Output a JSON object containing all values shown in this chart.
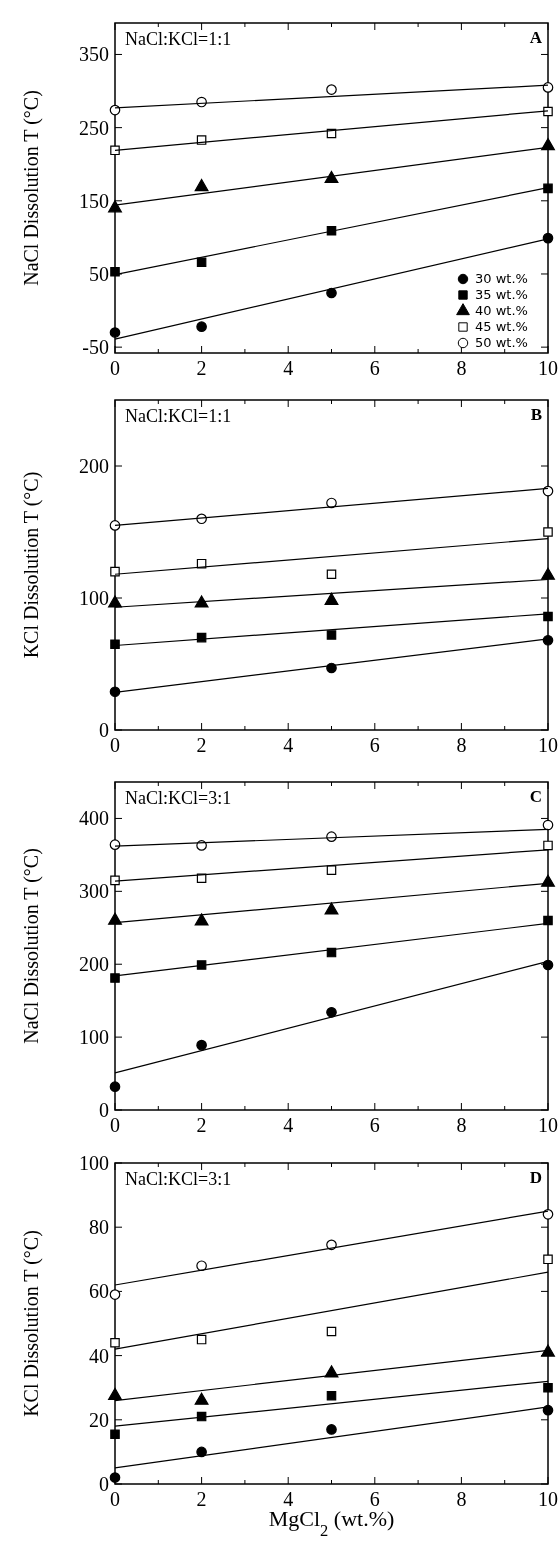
{
  "chart_data": [
    {
      "type": "scatter",
      "annotations": [
        "NaCl:KCl=1:1",
        "A"
      ],
      "ylabel": "NaCl Dissolution T (°C)",
      "xlim": [
        0,
        10
      ],
      "xticks": [
        0,
        {
          "value": 1,
          "label": null
        },
        2,
        {
          "value": 3,
          "label": null
        },
        4,
        {
          "value": 5,
          "label": null
        },
        6,
        {
          "value": 7,
          "label": null
        },
        8,
        {
          "value": 9,
          "label": null
        },
        10
      ],
      "ylim": [
        -58,
        393
      ],
      "yticks": [
        -50,
        50,
        150,
        250,
        350
      ],
      "legend": "bottom right",
      "series": [
        {
          "name": "30 wt.%",
          "marker": "circle",
          "color": "#000000",
          "x": [
            0,
            2,
            5,
            10
          ],
          "values": [
            -30,
            -22,
            24,
            99
          ]
        },
        {
          "name": "35 wt.%",
          "marker": "square",
          "color": "#000000",
          "x": [
            0,
            2,
            5,
            10
          ],
          "values": [
            53,
            66,
            109,
            167
          ]
        },
        {
          "name": "40 wt.%",
          "marker": "triangle",
          "color": "#000000",
          "x": [
            0,
            2,
            5,
            10
          ],
          "values": [
            140,
            169,
            180,
            225
          ]
        },
        {
          "name": "45 wt.%",
          "marker": "square",
          "color": "#ffffff",
          "x": [
            0,
            2,
            5,
            10
          ],
          "values": [
            219,
            233,
            242,
            272
          ]
        },
        {
          "name": "50 wt.%",
          "marker": "circle",
          "color": "#ffffff",
          "x": [
            0,
            2,
            5,
            10
          ],
          "values": [
            274,
            285,
            302,
            305
          ]
        },
        {
          "type": "line",
          "color": "#000000",
          "x": [
            0,
            10
          ],
          "values": [
            -39,
            98
          ]
        },
        {
          "type": "line",
          "color": "#000000",
          "x": [
            0,
            10
          ],
          "values": [
            49,
            168
          ]
        },
        {
          "type": "line",
          "color": "#000000",
          "x": [
            0,
            10
          ],
          "values": [
            144,
            223
          ]
        },
        {
          "type": "line",
          "color": "#000000",
          "x": [
            0,
            10
          ],
          "values": [
            219,
            273
          ]
        },
        {
          "type": "line",
          "color": "#000000",
          "x": [
            0,
            10
          ],
          "values": [
            277,
            308
          ]
        }
      ]
    },
    {
      "type": "scatter",
      "annotations": [
        "NaCl:KCl=1:1",
        "B"
      ],
      "ylabel": "KCl Dissolution T (°C)",
      "xlim": [
        0,
        10
      ],
      "xticks": [
        0,
        {
          "value": 1,
          "label": null
        },
        2,
        {
          "value": 3,
          "label": null
        },
        4,
        {
          "value": 5,
          "label": null
        },
        6,
        {
          "value": 7,
          "label": null
        },
        8,
        {
          "value": 9,
          "label": null
        },
        10
      ],
      "ylim": [
        0,
        250
      ],
      "yticks": [
        0,
        100,
        200
      ],
      "series": [
        {
          "marker": "circle",
          "color": "#000000",
          "x": [
            0,
            5,
            10
          ],
          "values": [
            29,
            47,
            68
          ]
        },
        {
          "marker": "square",
          "color": "#000000",
          "x": [
            0,
            2,
            5,
            10
          ],
          "values": [
            65,
            70,
            72,
            86
          ]
        },
        {
          "marker": "triangle",
          "color": "#000000",
          "x": [
            0,
            2,
            5,
            10
          ],
          "values": [
            96,
            96,
            98,
            117
          ]
        },
        {
          "marker": "square",
          "color": "#ffffff",
          "x": [
            0,
            2,
            5,
            10
          ],
          "values": [
            120,
            126,
            118,
            150
          ]
        },
        {
          "marker": "circle",
          "color": "#ffffff",
          "x": [
            0,
            2,
            5,
            10
          ],
          "values": [
            155,
            160,
            172,
            181
          ]
        },
        {
          "type": "line",
          "color": "#000000",
          "x": [
            0,
            10
          ],
          "values": [
            28.5,
            69
          ]
        },
        {
          "type": "line",
          "color": "#000000",
          "x": [
            0,
            10
          ],
          "values": [
            64,
            88
          ]
        },
        {
          "type": "line",
          "color": "#000000",
          "x": [
            0,
            10
          ],
          "values": [
            93,
            114
          ]
        },
        {
          "type": "line",
          "color": "#000000",
          "x": [
            0,
            10
          ],
          "values": [
            118,
            145
          ]
        },
        {
          "type": "line",
          "color": "#000000",
          "x": [
            0,
            10
          ],
          "values": [
            155,
            183
          ]
        }
      ]
    },
    {
      "type": "scatter",
      "annotations": [
        "NaCl:KCl=3:1",
        "C"
      ],
      "ylabel": "NaCl Dissolution T (°C)",
      "xlim": [
        0,
        10
      ],
      "xticks": [
        0,
        {
          "value": 1,
          "label": null
        },
        2,
        {
          "value": 3,
          "label": null
        },
        4,
        {
          "value": 5,
          "label": null
        },
        6,
        {
          "value": 7,
          "label": null
        },
        8,
        {
          "value": 9,
          "label": null
        },
        10
      ],
      "ylim": [
        0,
        450
      ],
      "yticks": [
        0,
        100,
        200,
        300,
        400
      ],
      "series": [
        {
          "marker": "circle",
          "color": "#000000",
          "x": [
            0,
            2,
            5,
            10
          ],
          "values": [
            32,
            89,
            134,
            199
          ]
        },
        {
          "marker": "square",
          "color": "#000000",
          "x": [
            0,
            2,
            5,
            10
          ],
          "values": [
            181,
            199,
            216,
            260
          ]
        },
        {
          "marker": "triangle",
          "color": "#000000",
          "x": [
            0,
            2,
            5,
            10
          ],
          "values": [
            260,
            259,
            274,
            312
          ]
        },
        {
          "marker": "square",
          "color": "#ffffff",
          "x": [
            0,
            2,
            5,
            10
          ],
          "values": [
            315,
            318,
            329,
            363
          ]
        },
        {
          "marker": "circle",
          "color": "#ffffff",
          "x": [
            0,
            2,
            5,
            10
          ],
          "values": [
            364,
            363,
            375,
            391
          ]
        },
        {
          "type": "line",
          "color": "#000000",
          "x": [
            0,
            10
          ],
          "values": [
            51,
            204
          ]
        },
        {
          "type": "line",
          "color": "#000000",
          "x": [
            0,
            10
          ],
          "values": [
            184,
            256
          ]
        },
        {
          "type": "line",
          "color": "#000000",
          "x": [
            0,
            10
          ],
          "values": [
            257,
            311
          ]
        },
        {
          "type": "line",
          "color": "#000000",
          "x": [
            0,
            10
          ],
          "values": [
            314,
            357
          ]
        },
        {
          "type": "line",
          "color": "#000000",
          "x": [
            0,
            10
          ],
          "values": [
            362,
            385
          ]
        }
      ]
    },
    {
      "type": "scatter",
      "annotations": [
        "NaCl:KCl=3:1",
        "D"
      ],
      "xlabel": "MgCl$_{2}$ (wt.%)",
      "ylabel": "KCl Dissolution T (°C)",
      "xlim": [
        0,
        10
      ],
      "xticks": [
        0,
        {
          "value": 1,
          "label": null
        },
        2,
        {
          "value": 3,
          "label": null
        },
        4,
        {
          "value": 5,
          "label": null
        },
        6,
        {
          "value": 7,
          "label": null
        },
        8,
        {
          "value": 9,
          "label": null
        },
        10
      ],
      "ylim": [
        0,
        100
      ],
      "yticks": [
        0,
        20,
        40,
        60,
        80,
        100
      ],
      "series": [
        {
          "marker": "circle",
          "color": "#000000",
          "x": [
            0,
            2,
            5,
            10
          ],
          "values": [
            2,
            10,
            17,
            23
          ]
        },
        {
          "marker": "square",
          "color": "#000000",
          "x": [
            0,
            2,
            5,
            10
          ],
          "values": [
            15.5,
            21,
            27.5,
            30
          ]
        },
        {
          "marker": "triangle",
          "color": "#000000",
          "x": [
            0,
            2,
            5,
            10
          ],
          "values": [
            27.5,
            26,
            34.5,
            41
          ]
        },
        {
          "marker": "square",
          "color": "#ffffff",
          "x": [
            0,
            2,
            5,
            10
          ],
          "values": [
            44,
            45,
            47.5,
            70
          ]
        },
        {
          "marker": "circle",
          "color": "#ffffff",
          "x": [
            0,
            2,
            5,
            10
          ],
          "values": [
            59,
            68,
            74.5,
            84
          ]
        },
        {
          "type": "line",
          "color": "#000000",
          "x": [
            0,
            10
          ],
          "values": [
            5,
            24
          ]
        },
        {
          "type": "line",
          "color": "#000000",
          "x": [
            0,
            10
          ],
          "values": [
            18,
            32
          ]
        },
        {
          "type": "line",
          "color": "#000000",
          "x": [
            0,
            10
          ],
          "values": [
            26,
            41.6
          ]
        },
        {
          "type": "line",
          "color": "#000000",
          "x": [
            0,
            10
          ],
          "values": [
            42,
            66
          ]
        },
        {
          "type": "line",
          "color": "#000000",
          "x": [
            0,
            10
          ],
          "values": [
            62,
            85
          ]
        }
      ]
    }
  ]
}
